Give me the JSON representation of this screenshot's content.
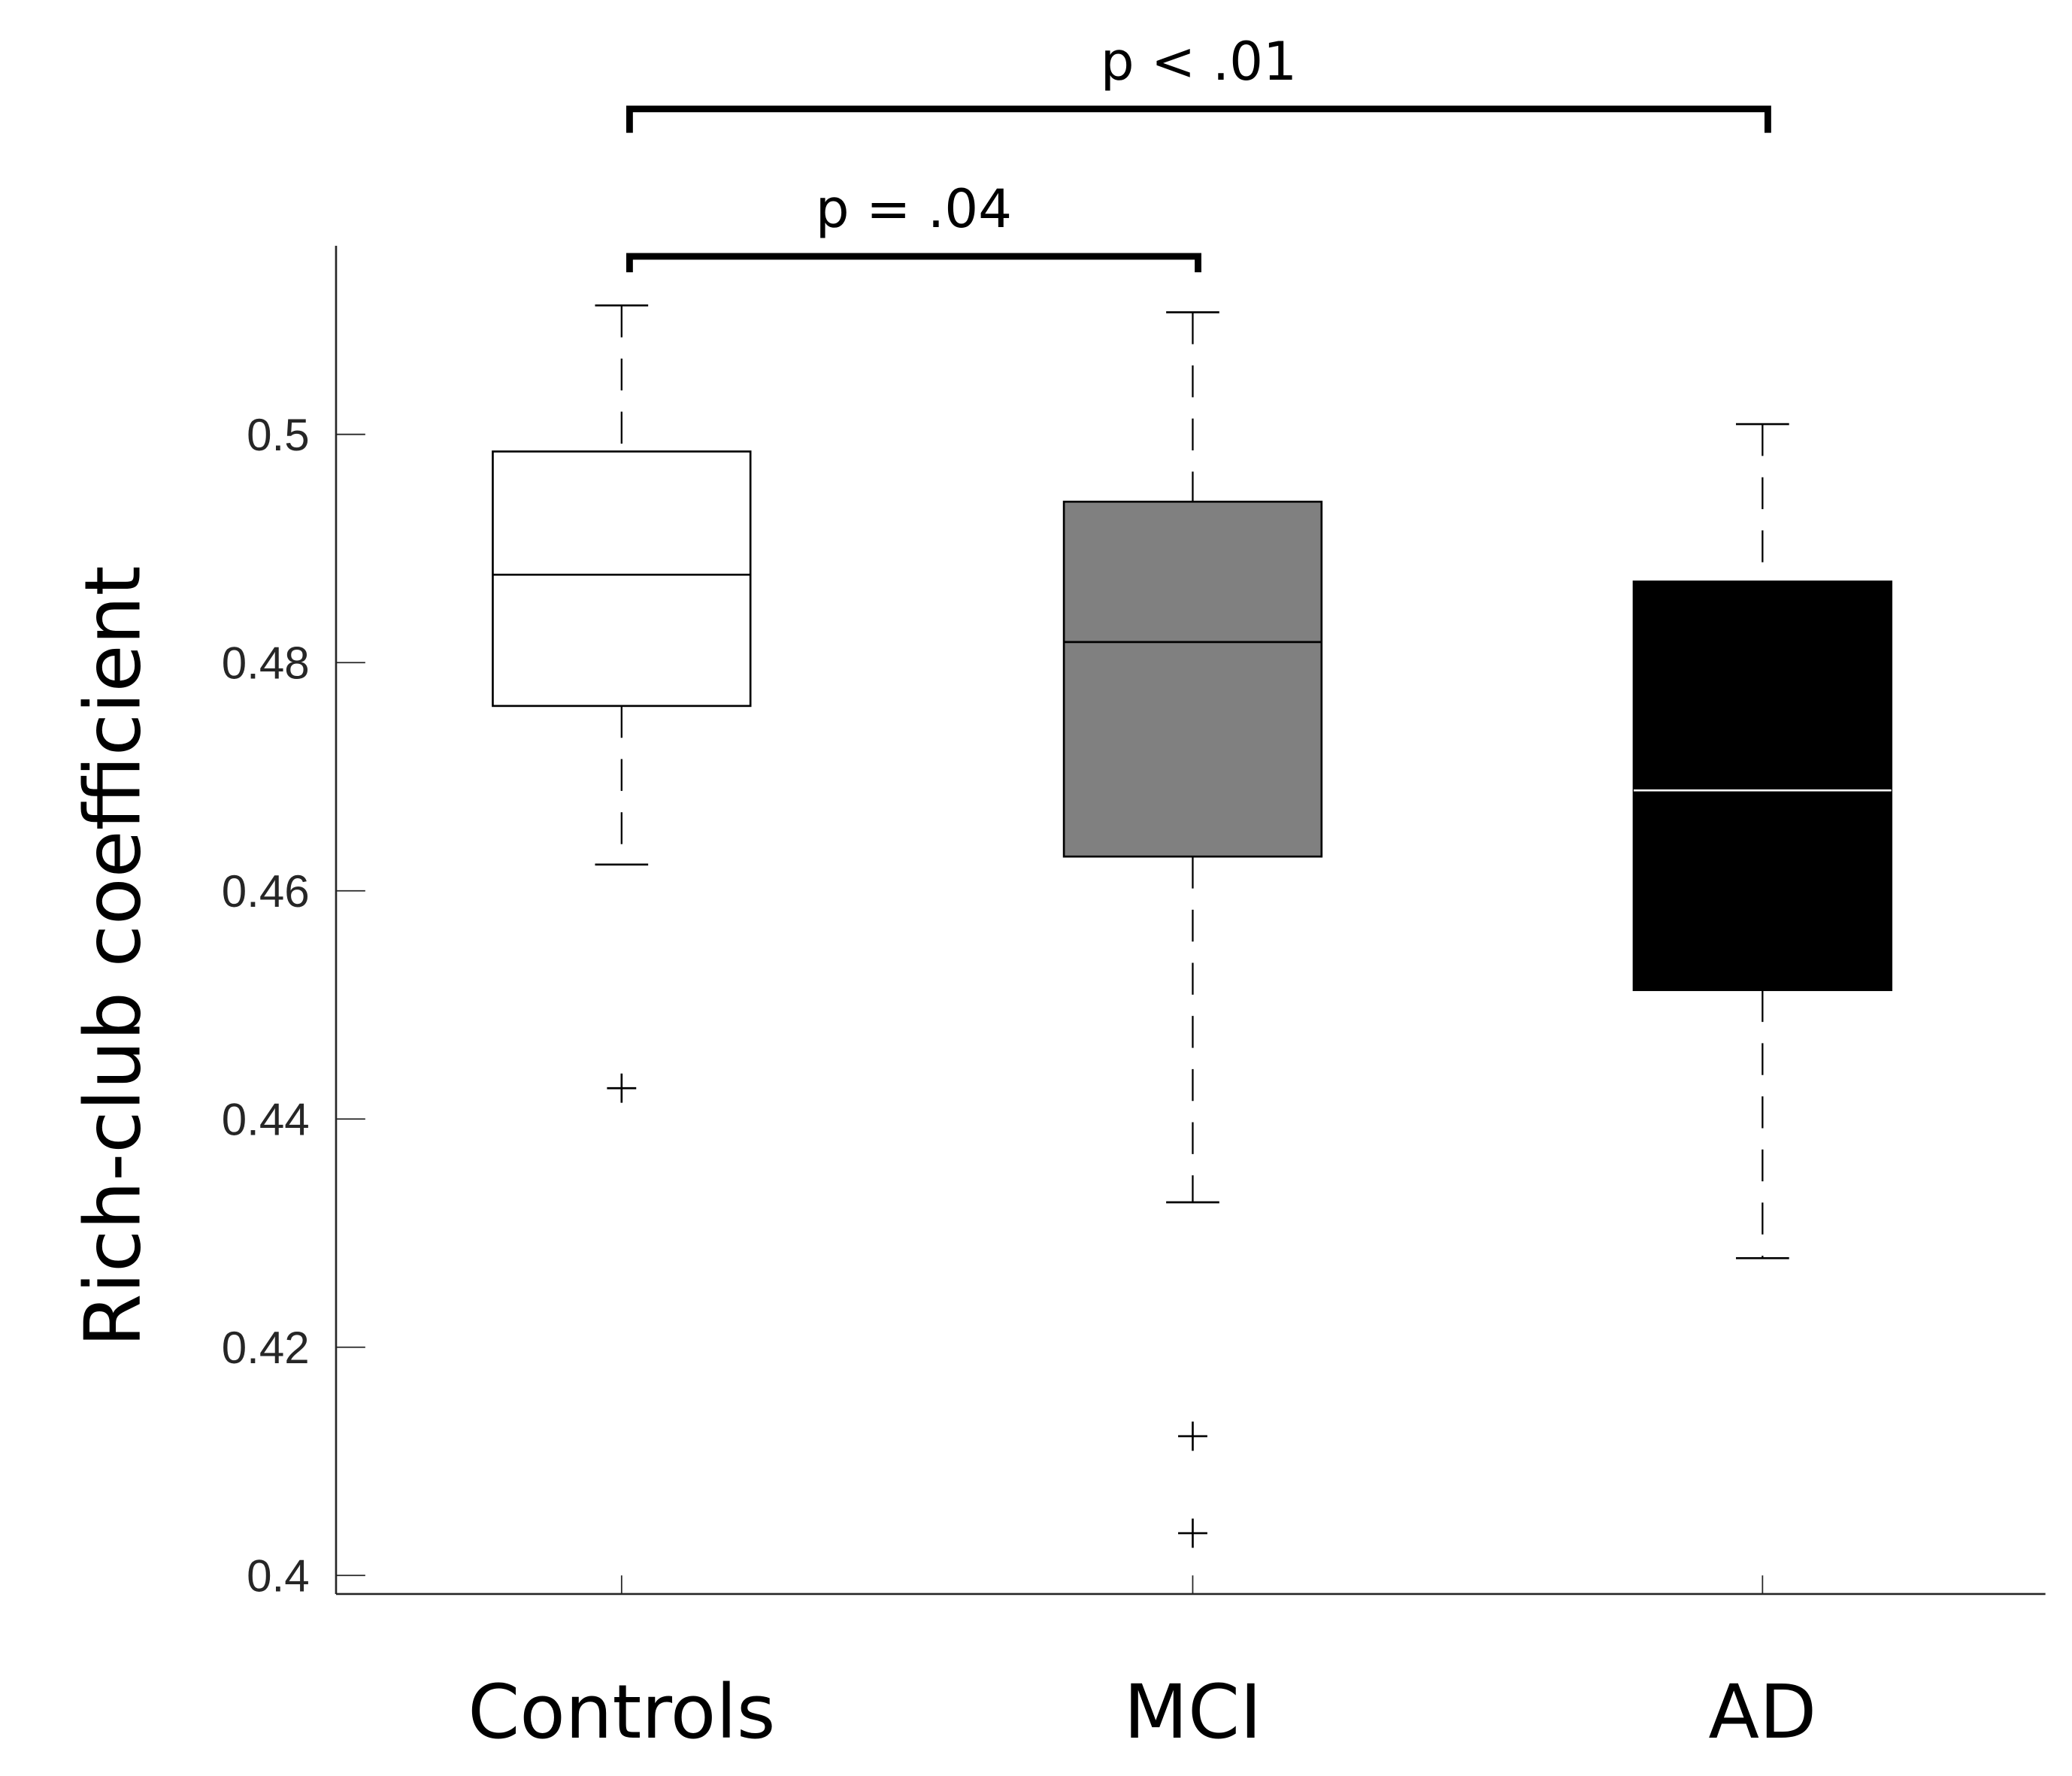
{
  "chart_data": {
    "type": "box",
    "title": "",
    "xlabel": "",
    "ylabel": "Rich-club coefficient",
    "ylim": [
      0.398,
      0.518
    ],
    "yticks": [
      0.4,
      0.42,
      0.44,
      0.46,
      0.48,
      0.5
    ],
    "ytick_labels": [
      "0.4",
      "0.42",
      "0.44",
      "0.46",
      "0.48",
      "0.5"
    ],
    "grid": false,
    "categories": [
      "Controls",
      "MCI",
      "AD"
    ],
    "boxes": [
      {
        "name": "Controls",
        "fill": "#ffffff",
        "median_color": "#000000",
        "whisker_low": 0.4623,
        "q1": 0.4762,
        "median": 0.4877,
        "q3": 0.4985,
        "whisker_high": 0.5113,
        "outliers": [
          0.4427
        ]
      },
      {
        "name": "MCI",
        "fill": "#808080",
        "median_color": "#000000",
        "whisker_low": 0.4327,
        "q1": 0.463,
        "median": 0.4818,
        "q3": 0.4941,
        "whisker_high": 0.5107,
        "outliers": [
          0.4122,
          0.4037
        ]
      },
      {
        "name": "AD",
        "fill": "#000000",
        "median_color": "#ffffff",
        "whisker_low": 0.4278,
        "q1": 0.4513,
        "median": 0.4688,
        "q3": 0.4871,
        "whisker_high": 0.5009,
        "outliers": []
      }
    ],
    "annotations": [
      {
        "from": "Controls",
        "to": "AD",
        "text": "p < .01",
        "level": 2
      },
      {
        "from": "Controls",
        "to": "MCI",
        "text": "p = .04",
        "level": 1
      }
    ]
  }
}
